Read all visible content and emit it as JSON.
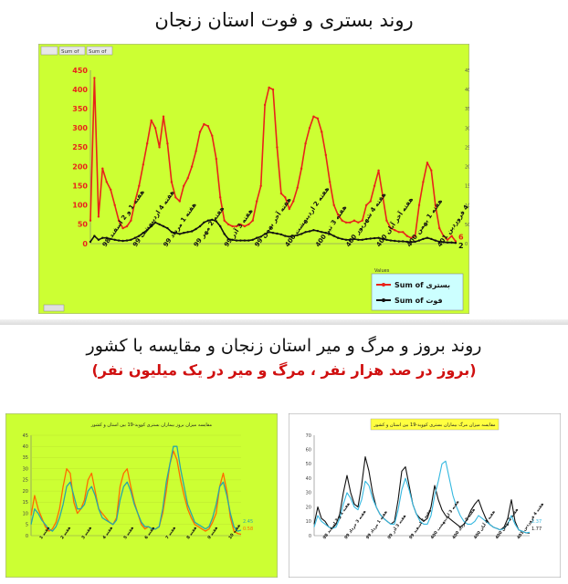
{
  "titles": {
    "main": "روند بستری و فوت استان زنجان",
    "section2": "روند بروز و مرگ و میر استان زنجان و مقایسه با کشور",
    "section2_note": "(بروز در صد هزار نفر ، مرگ و میر در یک میلیون نفر)"
  },
  "colors": {
    "panel_bg": "#ccff33",
    "red": "#e8231a",
    "black": "#111111",
    "orange": "#ff6a00",
    "teal": "#2aa6a6",
    "cyan": "#34b8e0"
  },
  "chart_data": [
    {
      "type": "line",
      "toolbar_labels": [
        "Sum of",
        "Sum of"
      ],
      "y_ticks_left": [
        "450",
        "400",
        "350",
        "300",
        "250",
        "200",
        "150",
        "100",
        "50",
        "0"
      ],
      "y_ticks_right": [
        "450",
        "400",
        "350",
        "300",
        "250",
        "200",
        "150",
        "100",
        "50",
        "0"
      ],
      "ylim": [
        0,
        450
      ],
      "x_labels": [
        "هفته 1 و 2 اسفند 98",
        "هفته 4 اردیبهشت 99",
        "هفته 1 مرداد 99",
        "هفته 2 مهر 99",
        "هفته 3 آذر 99",
        "هفته آخر بهمن 99",
        "هفته 2 اردیبهشت 400",
        "هفته 3 تیر 400",
        "هفته 4 شهریور 400",
        "هفته آخر آبان 400",
        "هفته 1 بهمن 400",
        "هفته 4 فروردین 401"
      ],
      "legend_title": "Values",
      "series": [
        {
          "name": "بستری",
          "legend": "Sum of بستری",
          "color": "#e8231a",
          "end_label": "6",
          "values": [
            60,
            430,
            70,
            195,
            160,
            140,
            100,
            60,
            40,
            45,
            60,
            110,
            150,
            205,
            260,
            320,
            300,
            250,
            330,
            260,
            160,
            120,
            110,
            150,
            170,
            200,
            240,
            290,
            310,
            305,
            280,
            220,
            120,
            60,
            50,
            45,
            45,
            50,
            45,
            50,
            60,
            110,
            150,
            360,
            405,
            400,
            250,
            130,
            120,
            90,
            110,
            145,
            195,
            260,
            300,
            330,
            325,
            290,
            230,
            160,
            100,
            75,
            60,
            55,
            55,
            60,
            55,
            60,
            100,
            110,
            150,
            190,
            125,
            60,
            40,
            35,
            30,
            30,
            20,
            15,
            20,
            100,
            160,
            210,
            190,
            100,
            40,
            20,
            10,
            20,
            6
          ]
        },
        {
          "name": "فوت",
          "legend": "Sum of فوت",
          "color": "#111111",
          "end_label": "2",
          "values": [
            5,
            20,
            10,
            15,
            15,
            12,
            10,
            8,
            7,
            8,
            10,
            15,
            20,
            28,
            35,
            45,
            55,
            50,
            45,
            40,
            30,
            28,
            25,
            28,
            30,
            32,
            38,
            45,
            55,
            60,
            62,
            58,
            45,
            25,
            12,
            10,
            8,
            8,
            8,
            8,
            10,
            15,
            18,
            25,
            30,
            28,
            26,
            24,
            20,
            18,
            20,
            22,
            25,
            30,
            32,
            35,
            33,
            30,
            28,
            25,
            20,
            15,
            12,
            10,
            10,
            12,
            10,
            10,
            12,
            13,
            14,
            15,
            12,
            10,
            8,
            7,
            6,
            6,
            5,
            4,
            5,
            8,
            12,
            15,
            12,
            8,
            5,
            4,
            3,
            3,
            2
          ]
        }
      ]
    },
    {
      "type": "line",
      "title": "مقایسه میزان بروز بیماران بستری کووید-19 بین استان و کشور",
      "y_ticks": [
        "45",
        "40",
        "35",
        "30",
        "25",
        "20",
        "15",
        "10",
        "5",
        "0"
      ],
      "ylim": [
        0,
        45
      ],
      "x_labels": [
        "هفته 1",
        "هفته 2",
        "هفته 3",
        "هفته 4",
        "هفته 5",
        "هفته 6",
        "هفته 7",
        "هفته 8",
        "هفته 9",
        "هفته 10"
      ],
      "end_labels": [
        "2.45",
        "0.58"
      ],
      "series": [
        {
          "name": "استان",
          "color": "#ff6a00",
          "values": [
            9,
            18,
            12,
            8,
            4,
            2,
            3,
            6,
            12,
            22,
            30,
            28,
            15,
            10,
            12,
            16,
            25,
            28,
            20,
            12,
            10,
            8,
            6,
            5,
            8,
            22,
            28,
            30,
            22,
            15,
            10,
            5,
            3,
            4,
            3,
            3,
            4,
            10,
            20,
            32,
            38,
            34,
            25,
            18,
            12,
            8,
            5,
            4,
            3,
            2,
            3,
            6,
            10,
            22,
            28,
            20,
            8,
            2,
            1,
            0.6
          ]
        },
        {
          "name": "کشور",
          "color": "#2aa6a6",
          "values": [
            5,
            12,
            10,
            7,
            5,
            3,
            2,
            4,
            8,
            14,
            22,
            24,
            18,
            12,
            12,
            14,
            20,
            22,
            18,
            12,
            8,
            7,
            6,
            5,
            7,
            16,
            22,
            24,
            20,
            14,
            10,
            6,
            4,
            4,
            3,
            3,
            4,
            12,
            24,
            32,
            40,
            40,
            30,
            22,
            14,
            10,
            6,
            5,
            4,
            3,
            4,
            8,
            14,
            22,
            24,
            18,
            10,
            4,
            2,
            2.45
          ]
        }
      ]
    },
    {
      "type": "line",
      "title": "مقایسه میزان مرگ بیماران بستری کووید-19 بین استان و کشور",
      "y_ticks": [
        "70",
        "60",
        "50",
        "40",
        "30",
        "20",
        "10",
        "0"
      ],
      "ylim": [
        0,
        70
      ],
      "x_labels": [
        "هفته 1 و 2 اسفند 98",
        "هفته 3 خرداد 99",
        "هفته 1 مرداد 99",
        "هفته 3 آذر 99",
        "هفته 2 اسفند 99",
        "هفته 3 اردیبهشت 400",
        "هفته 2 مرداد 400",
        "هفته 4 آبان 400",
        "هفته 2 بهمن 400",
        "هفته 4 فروردین 401"
      ],
      "end_labels": [
        "2.37",
        "1.77"
      ],
      "series": [
        {
          "name": "استان",
          "color": "#111111",
          "values": [
            8,
            20,
            12,
            10,
            6,
            5,
            8,
            15,
            30,
            42,
            30,
            22,
            20,
            35,
            55,
            45,
            30,
            20,
            15,
            12,
            10,
            8,
            10,
            25,
            45,
            48,
            35,
            22,
            15,
            12,
            10,
            12,
            20,
            35,
            25,
            18,
            14,
            12,
            10,
            8,
            6,
            8,
            12,
            18,
            22,
            25,
            18,
            12,
            8,
            6,
            5,
            4,
            6,
            12,
            25,
            10,
            4,
            3,
            2,
            1.77
          ]
        },
        {
          "name": "کشور",
          "color": "#34b8e0",
          "values": [
            6,
            14,
            10,
            8,
            6,
            5,
            6,
            12,
            22,
            30,
            26,
            20,
            18,
            25,
            38,
            35,
            26,
            20,
            15,
            12,
            10,
            8,
            8,
            18,
            32,
            40,
            32,
            22,
            15,
            10,
            8,
            8,
            14,
            28,
            38,
            50,
            52,
            40,
            28,
            20,
            14,
            10,
            8,
            8,
            10,
            14,
            12,
            10,
            8,
            6,
            5,
            4,
            5,
            8,
            14,
            8,
            4,
            3,
            2,
            2.37
          ]
        }
      ]
    }
  ]
}
